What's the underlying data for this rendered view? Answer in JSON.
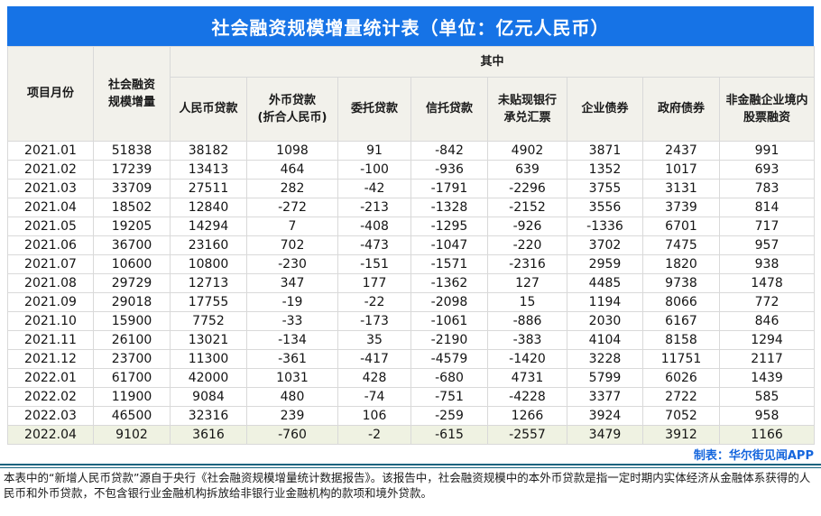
{
  "title": "社会融资规模增量统计表（单位：亿元人民币）",
  "credit": "制表：华尔街见闻APP",
  "footnote": "本表中的“新增人民币贷款”源自于央行《社会融资规模增量统计数据报告》。该报告中，社会融资规模中的本外币贷款是指一定时期内实体经济从金融体系获得的人民币和外币贷款，不包含银行业金融机构拆放给非银行业金融机构的款项和境外贷款。",
  "colors": {
    "title_bar_bg": "#1673e6",
    "title_text": "#ffffff",
    "header_bg": "#f2f1eb",
    "grid_line": "#d9d9d9",
    "highlight_row_bg": "#eff2e2",
    "credit_text": "#1566dd",
    "separator_line": "#16637e"
  },
  "chart_data": {
    "type": "table",
    "title": "社会融资规模增量统计表（单位：亿元人民币）",
    "header": {
      "month_col": "项目月份",
      "total_col": "社会融资\n规模增量",
      "among_which": "其中",
      "sub_columns": [
        "人民币贷款",
        "外币贷款\n(折合人民币)",
        "委托贷款",
        "信托贷款",
        "未贴现银行\n承兑汇票",
        "企业债券",
        "政府债券",
        "非金融企业境内\n股票融资"
      ]
    },
    "rows": [
      [
        "2021.01",
        "51838",
        "38182",
        "1098",
        "91",
        "-842",
        "4902",
        "3871",
        "2437",
        "991"
      ],
      [
        "2021.02",
        "17239",
        "13413",
        "464",
        "-100",
        "-936",
        "639",
        "1352",
        "1017",
        "693"
      ],
      [
        "2021.03",
        "33709",
        "27511",
        "282",
        "-42",
        "-1791",
        "-2296",
        "3755",
        "3131",
        "783"
      ],
      [
        "2021.04",
        "18502",
        "12840",
        "-272",
        "-213",
        "-1328",
        "-2152",
        "3556",
        "3739",
        "814"
      ],
      [
        "2021.05",
        "19205",
        "14294",
        "7",
        "-408",
        "-1295",
        "-926",
        "-1336",
        "6701",
        "717"
      ],
      [
        "2021.06",
        "36700",
        "23160",
        "702",
        "-473",
        "-1047",
        "-220",
        "3702",
        "7475",
        "957"
      ],
      [
        "2021.07",
        "10600",
        "10800",
        "-230",
        "-151",
        "-1571",
        "-2316",
        "2959",
        "1820",
        "938"
      ],
      [
        "2021.08",
        "29729",
        "12713",
        "347",
        "177",
        "-1362",
        "127",
        "4485",
        "9738",
        "1478"
      ],
      [
        "2021.09",
        "29018",
        "17755",
        "-19",
        "-22",
        "-2098",
        "15",
        "1194",
        "8066",
        "772"
      ],
      [
        "2021.10",
        "15900",
        "7752",
        "-33",
        "-173",
        "-1061",
        "-886",
        "2030",
        "6167",
        "846"
      ],
      [
        "2021.11",
        "26100",
        "13021",
        "-134",
        "35",
        "-2190",
        "-383",
        "4104",
        "8158",
        "1294"
      ],
      [
        "2021.12",
        "23700",
        "11300",
        "-361",
        "-417",
        "-4579",
        "-1420",
        "3228",
        "11751",
        "2117"
      ],
      [
        "2022.01",
        "61700",
        "42000",
        "1031",
        "428",
        "-680",
        "4731",
        "5799",
        "6026",
        "1439"
      ],
      [
        "2022.02",
        "11900",
        "9084",
        "480",
        "-74",
        "-751",
        "-4228",
        "3377",
        "2722",
        "585"
      ],
      [
        "2022.03",
        "46500",
        "32316",
        "239",
        "106",
        "-259",
        "1266",
        "3924",
        "7052",
        "958"
      ],
      [
        "2022.04",
        "9102",
        "3616",
        "-760",
        "-2",
        "-615",
        "-2557",
        "3479",
        "3912",
        "1166"
      ]
    ],
    "highlighted_row": "2022.04"
  }
}
